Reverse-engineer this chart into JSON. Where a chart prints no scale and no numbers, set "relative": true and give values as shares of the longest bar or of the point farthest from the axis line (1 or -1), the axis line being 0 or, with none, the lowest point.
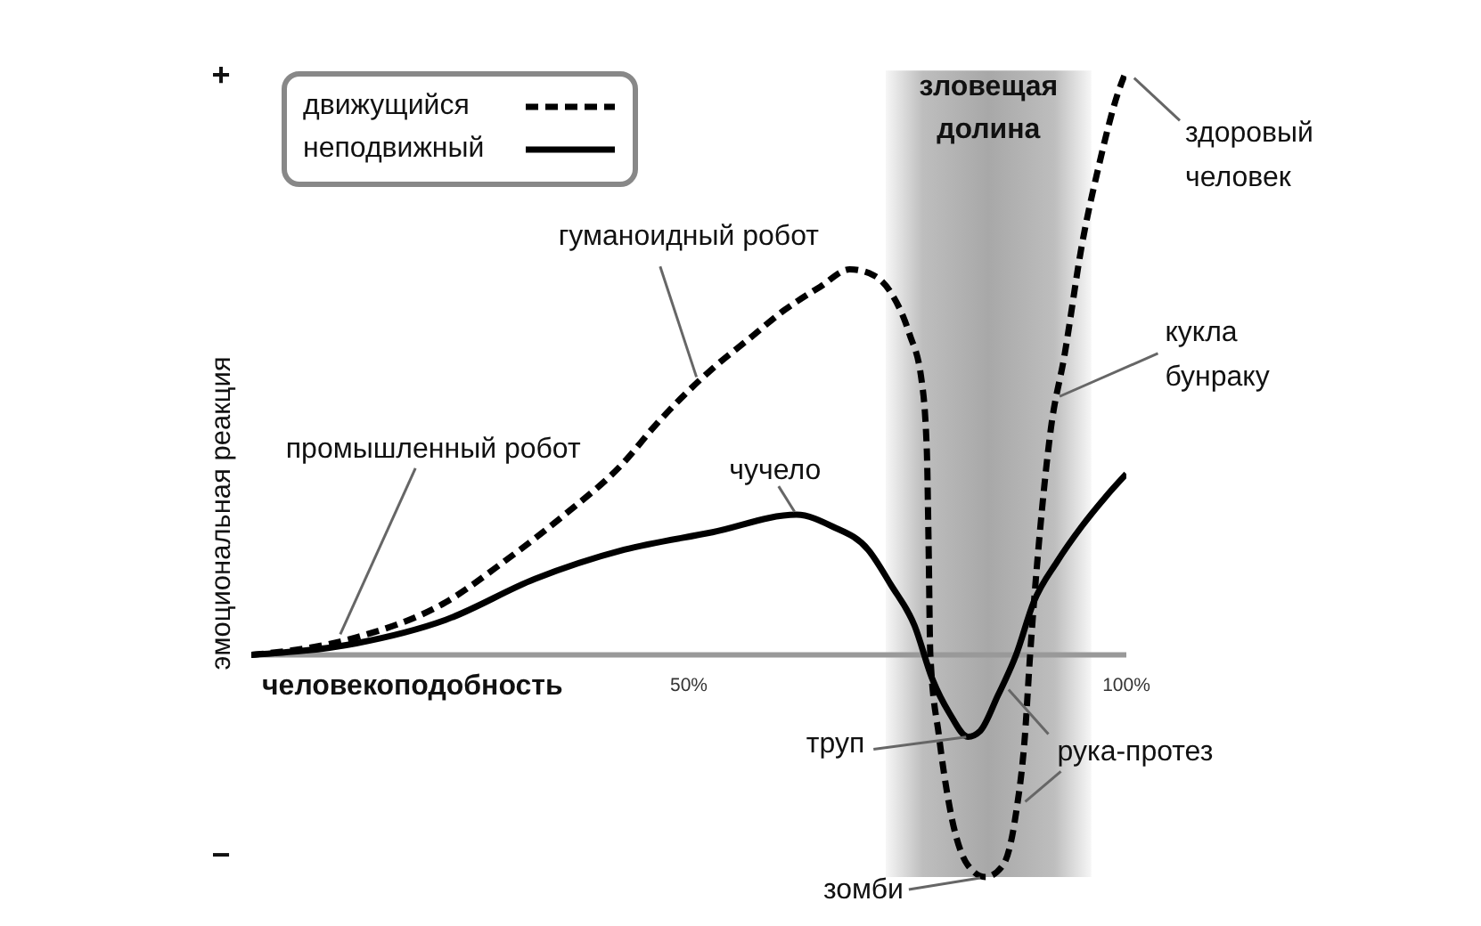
{
  "chart_data": {
    "type": "line",
    "xlabel": "человекоподобность",
    "ylabel": "эмоциональная реакция",
    "relative": true,
    "xlim": [
      0,
      100
    ],
    "xticks": [
      {
        "value": 50,
        "label": "50%"
      },
      {
        "value": 100,
        "label": "100%"
      }
    ],
    "series": [
      {
        "name": "движущийся",
        "color": "#000000",
        "line_style": "dashed",
        "x": [
          0,
          12,
          22.2,
          28.9,
          35.8,
          42.6,
          46,
          52.7,
          56.8,
          60.9,
          65,
          68.4,
          71.1,
          73.1,
          75.2,
          76.6,
          77.2,
          77.4,
          77.6,
          78.6,
          79.8,
          81.9,
          83.9,
          85.9,
          87.4,
          88.4,
          89,
          90,
          91.4,
          92.9,
          94.9,
          96.9,
          99,
          100
        ],
        "values": [
          0,
          0.03,
          0.09,
          0.16,
          0.24,
          0.33,
          0.39,
          0.49,
          0.54,
          0.59,
          0.63,
          0.66,
          0.65,
          0.62,
          0.55,
          0.47,
          0.35,
          0.19,
          0,
          -0.14,
          -0.26,
          -0.36,
          -0.38,
          -0.36,
          -0.27,
          -0.14,
          0,
          0.19,
          0.39,
          0.51,
          0.7,
          0.84,
          0.96,
          1
        ]
      },
      {
        "name": "неподвижный",
        "color": "#000000",
        "line_style": "solid",
        "x": [
          0,
          12,
          22.2,
          32.4,
          42.6,
          52.7,
          62.3,
          66.4,
          70.5,
          73.1,
          75.8,
          77.8,
          79.8,
          81.9,
          83.3,
          85.3,
          87.4,
          89.4,
          92.1,
          94.9,
          97.6,
          100
        ],
        "values": [
          0,
          0.02,
          0.06,
          0.13,
          0.18,
          0.21,
          0.24,
          0.22,
          0.18,
          0.12,
          0.05,
          -0.04,
          -0.1,
          -0.14,
          -0.13,
          -0.07,
          0,
          0.09,
          0.16,
          0.22,
          0.27,
          0.31
        ]
      }
    ],
    "bands": [
      {
        "axis": "x",
        "from": 72.5,
        "to": 96,
        "label": "зловещая\nдолина",
        "color": "#a8a8a8"
      }
    ],
    "annotations": [
      {
        "text": "промышленный робот",
        "x": 10,
        "y": 0.03
      },
      {
        "text": "гуманоидный робот",
        "x": 51,
        "y": 0.47
      },
      {
        "text": "чучело",
        "x": 62.3,
        "y": 0.24
      },
      {
        "text": "здоровый\nчеловек",
        "x": 100,
        "y": 1
      },
      {
        "text": "кукла\nбунраку",
        "x": 92,
        "y": 0.44
      },
      {
        "text": "труп",
        "x": 81.9,
        "y": -0.14
      },
      {
        "text": "рука-протез",
        "x": 86,
        "y": -0.05
      },
      {
        "text": "зомби",
        "x": 83.9,
        "y": -0.38
      },
      "+",
      "−"
    ],
    "legend": "top left"
  }
}
